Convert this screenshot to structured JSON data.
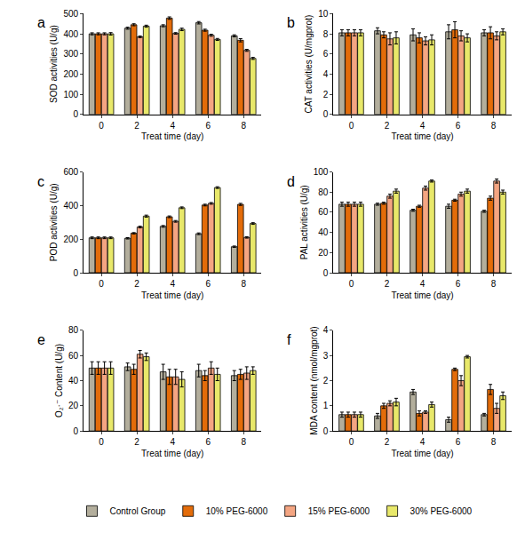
{
  "chart_data": [
    {
      "type": "bar",
      "panel": "a",
      "x_label": "Treat time (day)",
      "y_label": "SOD activities (U/g)",
      "categories": [
        "0",
        "2",
        "4",
        "6",
        "8"
      ],
      "ylim": [
        0,
        500
      ],
      "yticks": [
        0,
        100,
        200,
        300,
        400,
        500
      ],
      "grid": false,
      "legend": "bottom",
      "series": [
        {
          "name": "Control Group",
          "color": "#b3ae9c",
          "values": [
            400,
            428,
            440,
            455,
            390
          ],
          "error": [
            5,
            5,
            5,
            6,
            5
          ]
        },
        {
          "name": "10% PEG-6000",
          "color": "#e36c0a",
          "values": [
            400,
            445,
            478,
            418,
            368
          ],
          "error": [
            5,
            5,
            6,
            5,
            8
          ]
        },
        {
          "name": "15% PEG-6000",
          "color": "#f4a582",
          "values": [
            400,
            385,
            402,
            393,
            318
          ],
          "error": [
            5,
            4,
            4,
            5,
            5
          ]
        },
        {
          "name": "30% PEG-6000",
          "color": "#e8e86a",
          "values": [
            400,
            438,
            422,
            372,
            278
          ],
          "error": [
            6,
            5,
            6,
            5,
            5
          ]
        }
      ]
    },
    {
      "type": "bar",
      "panel": "b",
      "x_label": "Treat time (day)",
      "y_label": "CAT activities (U/mgprot)",
      "categories": [
        "0",
        "2",
        "4",
        "6",
        "8"
      ],
      "ylim": [
        0,
        10
      ],
      "yticks": [
        0,
        2,
        4,
        6,
        8,
        10
      ],
      "grid": false,
      "legend": "bottom",
      "series": [
        {
          "name": "Control Group",
          "color": "#b3ae9c",
          "values": [
            8.1,
            8.3,
            7.9,
            8.2,
            8.1
          ],
          "error": [
            0.3,
            0.3,
            0.6,
            0.7,
            0.3
          ]
        },
        {
          "name": "10% PEG-6000",
          "color": "#e36c0a",
          "values": [
            8.1,
            7.9,
            7.6,
            8.4,
            8.1
          ],
          "error": [
            0.3,
            0.3,
            0.5,
            0.8,
            0.6
          ]
        },
        {
          "name": "15% PEG-6000",
          "color": "#f4a582",
          "values": [
            8.1,
            7.5,
            7.3,
            7.8,
            7.8
          ],
          "error": [
            0.3,
            0.6,
            0.4,
            0.5,
            0.4
          ]
        },
        {
          "name": "30% PEG-6000",
          "color": "#e8e86a",
          "values": [
            8.1,
            7.6,
            7.4,
            7.6,
            8.2
          ],
          "error": [
            0.3,
            0.6,
            0.5,
            0.4,
            0.3
          ]
        }
      ]
    },
    {
      "type": "bar",
      "panel": "c",
      "x_label": "Treat time (day)",
      "y_label": "POD activities (U/g)",
      "categories": [
        "0",
        "2",
        "4",
        "6",
        "8"
      ],
      "ylim": [
        0,
        600
      ],
      "yticks": [
        0,
        200,
        400,
        600
      ],
      "grid": false,
      "legend": "bottom",
      "series": [
        {
          "name": "Control Group",
          "color": "#b3ae9c",
          "values": [
            208,
            205,
            276,
            232,
            155
          ],
          "error": [
            5,
            4,
            5,
            5,
            4
          ]
        },
        {
          "name": "10% PEG-6000",
          "color": "#e36c0a",
          "values": [
            208,
            235,
            333,
            403,
            407
          ],
          "error": [
            5,
            4,
            5,
            5,
            6
          ]
        },
        {
          "name": "15% PEG-6000",
          "color": "#f4a582",
          "values": [
            208,
            272,
            306,
            413,
            210
          ],
          "error": [
            5,
            5,
            5,
            5,
            4
          ]
        },
        {
          "name": "30% PEG-6000",
          "color": "#e8e86a",
          "values": [
            208,
            337,
            387,
            507,
            293
          ],
          "error": [
            5,
            6,
            5,
            5,
            5
          ]
        }
      ]
    },
    {
      "type": "bar",
      "panel": "d",
      "x_label": "Treat time (day)",
      "y_label": "PAL activities (U/g)",
      "categories": [
        "0",
        "2",
        "4",
        "6",
        "8"
      ],
      "ylim": [
        0,
        100
      ],
      "yticks": [
        0,
        20,
        40,
        60,
        80,
        100
      ],
      "grid": false,
      "legend": "bottom",
      "series": [
        {
          "name": "Control Group",
          "color": "#b3ae9c",
          "values": [
            68,
            68,
            62,
            66,
            61
          ],
          "error": [
            2,
            1,
            1,
            2,
            1
          ]
        },
        {
          "name": "10% PEG-6000",
          "color": "#e36c0a",
          "values": [
            68,
            69,
            66,
            72,
            74
          ],
          "error": [
            2,
            1,
            1,
            1,
            2
          ]
        },
        {
          "name": "15% PEG-6000",
          "color": "#f4a582",
          "values": [
            68,
            76,
            84,
            78,
            91
          ],
          "error": [
            2,
            2,
            2,
            2,
            2
          ]
        },
        {
          "name": "30% PEG-6000",
          "color": "#e8e86a",
          "values": [
            68,
            81,
            91,
            81,
            80
          ],
          "error": [
            2,
            2,
            1,
            2,
            2
          ]
        }
      ]
    },
    {
      "type": "bar",
      "panel": "e",
      "x_label": "Treat time (day)",
      "y_label": "O₂·⁻ Content (U/g)",
      "categories": [
        "0",
        "2",
        "4",
        "6",
        "8"
      ],
      "ylim": [
        0,
        80
      ],
      "yticks": [
        0,
        20,
        40,
        60,
        80
      ],
      "grid": false,
      "legend": "bottom",
      "series": [
        {
          "name": "Control Group",
          "color": "#b3ae9c",
          "values": [
            50,
            51,
            47,
            48,
            44
          ],
          "error": [
            5,
            3,
            6,
            5,
            4
          ]
        },
        {
          "name": "10% PEG-6000",
          "color": "#e36c0a",
          "values": [
            50,
            49,
            43,
            44,
            45
          ],
          "error": [
            5,
            4,
            6,
            4,
            4
          ]
        },
        {
          "name": "15% PEG-6000",
          "color": "#f4a582",
          "values": [
            50,
            61,
            43,
            50,
            46
          ],
          "error": [
            5,
            3,
            6,
            5,
            5
          ]
        },
        {
          "name": "30% PEG-6000",
          "color": "#e8e86a",
          "values": [
            50,
            59,
            41,
            45,
            48
          ],
          "error": [
            5,
            3,
            6,
            5,
            3
          ]
        }
      ]
    },
    {
      "type": "bar",
      "panel": "f",
      "x_label": "Treat time (day)",
      "y_label": "MDA content (nmol/mgprot)",
      "categories": [
        "0",
        "2",
        "4",
        "6",
        "8"
      ],
      "ylim": [
        0,
        4
      ],
      "yticks": [
        0,
        1,
        2,
        3,
        4
      ],
      "grid": false,
      "legend": "bottom",
      "series": [
        {
          "name": "Control Group",
          "color": "#b3ae9c",
          "values": [
            0.65,
            0.6,
            1.55,
            0.45,
            0.65
          ],
          "error": [
            0.1,
            0.1,
            0.1,
            0.1,
            0.05
          ]
        },
        {
          "name": "10% PEG-6000",
          "color": "#e36c0a",
          "values": [
            0.65,
            1.0,
            0.7,
            2.45,
            1.65
          ],
          "error": [
            0.1,
            0.1,
            0.1,
            0.05,
            0.2
          ]
        },
        {
          "name": "15% PEG-6000",
          "color": "#f4a582",
          "values": [
            0.65,
            1.1,
            0.75,
            2.0,
            0.9
          ],
          "error": [
            0.1,
            0.1,
            0.05,
            0.2,
            0.2
          ]
        },
        {
          "name": "30% PEG-6000",
          "color": "#e8e86a",
          "values": [
            0.65,
            1.15,
            1.05,
            2.95,
            1.4
          ],
          "error": [
            0.1,
            0.15,
            0.1,
            0.05,
            0.15
          ]
        }
      ]
    }
  ]
}
